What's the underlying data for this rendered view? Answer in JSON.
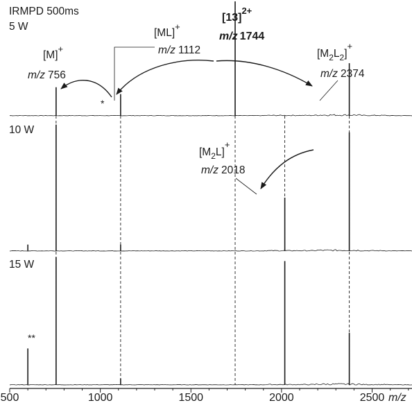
{
  "chart_data": {
    "type": "line",
    "title_line1": "IRMPD 500ms",
    "xlabel": "m/z",
    "xlim": [
      500,
      2720
    ],
    "x_ticks": [
      500,
      1000,
      1500,
      2000,
      2500
    ],
    "x_tick_labels": [
      "500",
      "1000",
      "1500",
      "2000",
      "2500"
    ],
    "panels": [
      {
        "name": "5 W",
        "peaks": [
          {
            "mz": 756,
            "intensity": 0.25
          },
          {
            "mz": 1112,
            "intensity": 0.19
          },
          {
            "mz": 1744,
            "intensity": 1.0
          },
          {
            "mz": 2374,
            "intensity": 0.46
          }
        ]
      },
      {
        "name": "10 W",
        "peaks": [
          {
            "mz": 600,
            "intensity": 0.05
          },
          {
            "mz": 756,
            "intensity": 0.97
          },
          {
            "mz": 1112,
            "intensity": 0.05
          },
          {
            "mz": 2018,
            "intensity": 0.41
          },
          {
            "mz": 2374,
            "intensity": 0.91
          }
        ]
      },
      {
        "name": "15 W",
        "peaks": [
          {
            "mz": 600,
            "intensity": 0.28
          },
          {
            "mz": 756,
            "intensity": 0.98
          },
          {
            "mz": 1112,
            "intensity": 0.05
          },
          {
            "mz": 2018,
            "intensity": 0.95
          },
          {
            "mz": 2374,
            "intensity": 0.4
          }
        ]
      }
    ],
    "annotations": {
      "m_ion": {
        "name": "[M]",
        "charge": "+",
        "mz_prefix": "m/z",
        "mz_value": "756"
      },
      "ml_ion": {
        "name": "[ML]",
        "charge": "+",
        "mz_prefix": "m/z",
        "mz_value": "1112"
      },
      "parent_ion": {
        "name": "[13]",
        "charge": "2+",
        "mz_prefix": "m/z",
        "mz_value": "1744"
      },
      "m2l2_ion": {
        "name_main": "[M",
        "sub1": "2",
        "name_mid": "L",
        "sub2": "2",
        "name_end": "]",
        "charge": "+",
        "mz_prefix": "m/z",
        "mz_value": "2374"
      },
      "m2l_ion": {
        "name_main": "[M",
        "sub1": "2",
        "name_end": "L]",
        "charge": "+",
        "mz_prefix": "m/z",
        "mz_value": "2018"
      },
      "single_star": "*",
      "double_star": "**"
    },
    "colors": {
      "trace": "#1a1a1a",
      "background": "#ffffff"
    }
  }
}
